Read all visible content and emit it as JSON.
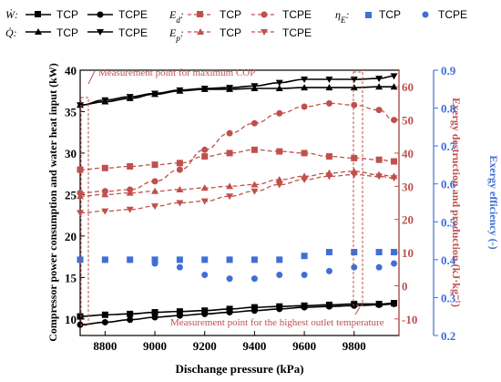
{
  "chart_data": {
    "type": "line",
    "xlabel": "Dischange pressure (kPa)",
    "ylabel_left": "Compressor power consumption and water heat input (kW)",
    "ylabel_right1": "Exergy destruction and production (kJ·kg⁻¹)",
    "ylabel_right2": "Exergy efficiency (-)",
    "xlim": [
      8700,
      9980
    ],
    "ylim_left": [
      8,
      40
    ],
    "ylim_right1": [
      -15,
      65
    ],
    "ylim_right2": [
      0.2,
      0.9
    ],
    "x_ticks": [
      8800,
      9000,
      9200,
      9400,
      9600,
      9800
    ],
    "x_tick_labels": [
      "8800",
      "9000",
      "9200",
      "9400",
      "9600",
      "9800"
    ],
    "y_left_ticks": [
      10,
      15,
      20,
      25,
      30,
      35,
      40
    ],
    "y_left_tick_labels": [
      "10",
      "15",
      "20",
      "25",
      "30",
      "35",
      "40"
    ],
    "y_right1_ticks": [
      -10,
      0,
      10,
      20,
      30,
      40,
      50,
      60
    ],
    "y_right1_tick_labels": [
      "-10",
      "0",
      "10",
      "20",
      "30",
      "40",
      "50",
      "60"
    ],
    "y_right2_ticks": [
      0.2,
      0.3,
      0.4,
      0.5,
      0.6,
      0.7,
      0.8,
      0.9
    ],
    "y_right2_tick_labels": [
      "0.2",
      "0.3",
      "0.4",
      "0.5",
      "0.6",
      "0.7",
      "0.8",
      "0.9"
    ],
    "x": [
      8700,
      8800,
      8900,
      9000,
      9100,
      9200,
      9300,
      9400,
      9500,
      9600,
      9700,
      9800,
      9900,
      9960
    ],
    "series": [
      {
        "name": "TCP",
        "symbol": "W_dot",
        "axis": "left",
        "color": "#000000",
        "marker": "square",
        "dash": false,
        "values": [
          10.3,
          10.5,
          10.6,
          10.8,
          10.9,
          11.0,
          11.2,
          11.4,
          11.5,
          11.6,
          11.7,
          11.8,
          11.8,
          11.9
        ]
      },
      {
        "name": "TCPE",
        "symbol": "W_dot",
        "axis": "left",
        "color": "#000000",
        "marker": "circle",
        "dash": false,
        "values": [
          9.3,
          9.6,
          9.9,
          10.2,
          10.4,
          10.6,
          10.8,
          11.0,
          11.2,
          11.4,
          11.5,
          11.6,
          11.7,
          11.8
        ]
      },
      {
        "name": "TCP",
        "symbol": "Q_dot",
        "axis": "left",
        "color": "#000000",
        "marker": "triangle-up",
        "dash": false,
        "values": [
          35.8,
          36.2,
          36.6,
          37.1,
          37.5,
          37.7,
          37.7,
          37.8,
          37.8,
          37.9,
          37.9,
          37.9,
          38.0,
          38.0
        ]
      },
      {
        "name": "TCPE",
        "symbol": "Q_dot",
        "axis": "left",
        "color": "#000000",
        "marker": "triangle-down",
        "dash": false,
        "values": [
          35.8,
          36.4,
          36.8,
          37.2,
          37.6,
          37.8,
          37.9,
          38.1,
          38.5,
          38.9,
          38.9,
          38.9,
          39.0,
          39.3
        ]
      },
      {
        "name": "TCP",
        "symbol": "E_d",
        "axis": "right1",
        "color": "#c0504d",
        "marker": "square",
        "dash": true,
        "values": [
          35,
          35.5,
          36,
          36.5,
          37,
          39,
          40,
          41,
          40.5,
          40,
          39,
          38.5,
          38,
          37.5
        ]
      },
      {
        "name": "TCPE",
        "symbol": "E_d",
        "axis": "right1",
        "color": "#c0504d",
        "marker": "circle",
        "dash": true,
        "values": [
          28,
          28.5,
          29,
          31.5,
          35,
          41,
          46,
          49,
          52,
          54,
          55,
          54.5,
          53,
          50
        ]
      },
      {
        "name": "TCP",
        "symbol": "E_p",
        "axis": "right1",
        "color": "#c0504d",
        "marker": "triangle-up",
        "dash": true,
        "values": [
          27,
          27.5,
          28,
          28.5,
          29,
          29.5,
          30,
          30.5,
          32,
          33,
          34,
          34.5,
          33.5,
          33
        ]
      },
      {
        "name": "TCPE",
        "symbol": "E_p",
        "axis": "right1",
        "color": "#c0504d",
        "marker": "triangle-down",
        "dash": true,
        "values": [
          22,
          22.5,
          23,
          24,
          25,
          25.5,
          27,
          28.5,
          30.5,
          32,
          33,
          33.5,
          33,
          32.5
        ]
      },
      {
        "name": "TCP",
        "symbol": "eta_E",
        "axis": "right2",
        "color": "#3f6fd6",
        "marker": "square",
        "dash": false,
        "line": false,
        "values": [
          0.4,
          0.4,
          0.4,
          0.4,
          0.4,
          0.4,
          0.4,
          0.4,
          0.4,
          0.41,
          0.42,
          0.42,
          0.42,
          0.42
        ]
      },
      {
        "name": "TCPE",
        "symbol": "eta_E",
        "axis": "right2",
        "color": "#3f6fd6",
        "marker": "circle",
        "dash": false,
        "line": false,
        "values": [
          0.4,
          0.4,
          0.4,
          0.39,
          0.38,
          0.36,
          0.35,
          0.35,
          0.36,
          0.36,
          0.37,
          0.38,
          0.38,
          0.39
        ]
      }
    ],
    "legend_labels": {
      "tcp": "TCP",
      "tcpe": "TCPE"
    },
    "annotations": {
      "top": "Measurement point for maximum COP",
      "bottom": "Measurement point for the highest outlet temperature"
    },
    "colors": {
      "black": "#000000",
      "red": "#c0504d",
      "blue": "#3f6fd6",
      "dashbox": "#c0504d"
    }
  }
}
